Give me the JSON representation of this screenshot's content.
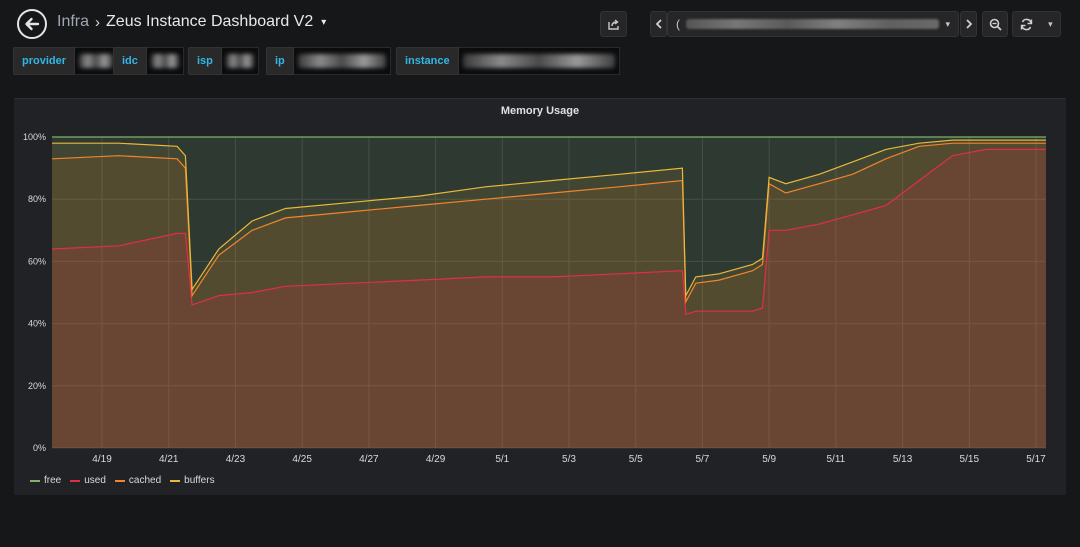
{
  "header": {
    "folder": "Infra",
    "separator": "›",
    "title": "Zeus Instance Dashboard V2",
    "caret": "▾"
  },
  "toolbar": {
    "share_icon": "share-icon",
    "time_prev_icon": "chevron-left-icon",
    "time_next_icon": "chevron-right-icon",
    "zoom_icon": "zoom-out-icon",
    "refresh_icon": "refresh-icon",
    "time_range_prefix": "(",
    "time_range_caret": "▾",
    "refresh_caret": "▾"
  },
  "variables": [
    {
      "label": "provider",
      "value": ""
    },
    {
      "label": "idc",
      "value": ""
    },
    {
      "label": "isp",
      "value": ""
    },
    {
      "label": "ip",
      "value": ""
    },
    {
      "label": "instance",
      "value": ""
    }
  ],
  "panel": {
    "title": "Memory Usage"
  },
  "chart_data": {
    "type": "area",
    "title": "Memory Usage",
    "y_ticks": [
      "0%",
      "20%",
      "40%",
      "60%",
      "80%",
      "100%"
    ],
    "ylim": [
      0,
      100
    ],
    "x_ticks": [
      "4/19",
      "4/21",
      "4/23",
      "4/25",
      "4/27",
      "4/29",
      "5/1",
      "5/3",
      "5/5",
      "5/7",
      "5/9",
      "5/11",
      "5/13",
      "5/15",
      "5/17"
    ],
    "grid": true,
    "legend_position": "bottom-left",
    "x": [
      0,
      2.0,
      3.75,
      4.0,
      4.2,
      5.0,
      6.0,
      7.0,
      9.0,
      11.0,
      13.0,
      15.0,
      17.0,
      18.9,
      19.0,
      19.3,
      20.0,
      21.0,
      21.3,
      21.5,
      22.0,
      23.0,
      24.0,
      25.0,
      26.0,
      27.0,
      28.0,
      29.0,
      29.8
    ],
    "series": [
      {
        "name": "free",
        "color": "#7eb26d",
        "values": [
          100,
          100,
          100,
          100,
          100,
          100,
          100,
          100,
          100,
          100,
          100,
          100,
          100,
          100,
          100,
          100,
          100,
          100,
          100,
          100,
          100,
          100,
          100,
          100,
          100,
          100,
          100,
          100,
          100
        ]
      },
      {
        "name": "used",
        "color": "#e02f44",
        "values": [
          64,
          65,
          69,
          69,
          46,
          49,
          50,
          52,
          53,
          54,
          55,
          55,
          56,
          57,
          43,
          44,
          44,
          44,
          45,
          70,
          70,
          72,
          75,
          78,
          86,
          94,
          96,
          96,
          96
        ]
      },
      {
        "name": "cached",
        "color": "#f2842c",
        "values": [
          93,
          94,
          93,
          90,
          49,
          62,
          70,
          74,
          76,
          78,
          80,
          82,
          84,
          86,
          47,
          53,
          54,
          57,
          59,
          85,
          82,
          85,
          88,
          93,
          97,
          98,
          98,
          98,
          98
        ]
      },
      {
        "name": "buffers",
        "color": "#eab839",
        "values": [
          98,
          98,
          97,
          94,
          51,
          64,
          73,
          77,
          79,
          81,
          84,
          86,
          88,
          90,
          49,
          55,
          56,
          59,
          61,
          87,
          85,
          88,
          92,
          96,
          98,
          99,
          99,
          99,
          99
        ]
      }
    ]
  }
}
